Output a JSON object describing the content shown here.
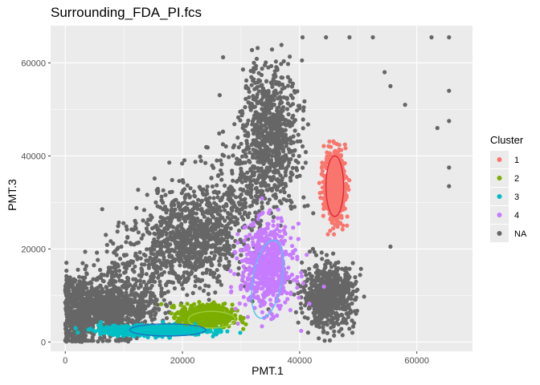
{
  "chart_data": {
    "type": "scatter",
    "title": "Surrounding_FDA_PI.fcs",
    "xlabel": "PMT.1",
    "ylabel": "PMT.3",
    "xlim": [
      -2500,
      69500
    ],
    "ylim": [
      -2000,
      68000
    ],
    "x_ticks": [
      0,
      20000,
      40000,
      60000
    ],
    "x_tick_labels": [
      "0",
      "20000",
      "40000",
      "60000"
    ],
    "y_ticks": [
      0,
      20000,
      40000,
      60000
    ],
    "y_tick_labels": [
      "0",
      "20000",
      "40000",
      "60000"
    ],
    "grid": true,
    "legend": {
      "title": "Cluster",
      "placement": "right",
      "entries": [
        {
          "label": "1",
          "color": "#f8766d"
        },
        {
          "label": "2",
          "color": "#7cae00"
        },
        {
          "label": "3",
          "color": "#00bfc4"
        },
        {
          "label": "4",
          "color": "#c77cff"
        },
        {
          "label": "NA",
          "color": "#666666"
        }
      ]
    },
    "series": [
      {
        "name": "NA",
        "color": "#666666",
        "description_regions": [
          {
            "cx": 35000,
            "cy": 45000,
            "rx": 4500,
            "ry": 14000
          },
          {
            "cx": 22000,
            "cy": 22000,
            "rx": 9000,
            "ry": 9000
          },
          {
            "cx": 8000,
            "cy": 7000,
            "rx": 7000,
            "ry": 5000
          },
          {
            "cx": 45000,
            "cy": 10000,
            "rx": 4000,
            "ry": 6000
          }
        ],
        "outliers": [
          [
            65500,
            65500
          ],
          [
            65500,
            54000
          ],
          [
            65500,
            47500
          ],
          [
            65500,
            37500
          ],
          [
            65500,
            33500
          ],
          [
            63500,
            46000
          ],
          [
            58000,
            51000
          ],
          [
            55500,
            55000
          ],
          [
            55500,
            20500
          ],
          [
            52500,
            65500
          ],
          [
            48500,
            65500
          ],
          [
            44500,
            65500
          ],
          [
            40500,
            65500
          ],
          [
            62500,
            65500
          ],
          [
            54500,
            58000
          ]
        ]
      },
      {
        "name": "1",
        "color": "#f8766d",
        "center": [
          46000,
          33500
        ],
        "spread": [
          1800,
          7500
        ],
        "ellipse": {
          "cx": 46000,
          "cy": 33500,
          "rx": 1500,
          "ry": 6500
        }
      },
      {
        "name": "2",
        "color": "#7cae00",
        "center": [
          24000,
          5500
        ],
        "spread": [
          4500,
          2500
        ],
        "ellipse": {
          "cx": 25000,
          "cy": 4800,
          "rx": 4000,
          "ry": 1800
        }
      },
      {
        "name": "3",
        "color": "#00bfc4",
        "center": [
          15000,
          2500
        ],
        "spread": [
          9000,
          1000
        ],
        "ellipse": {
          "cx": 17500,
          "cy": 2600,
          "rx": 6500,
          "ry": 1300
        }
      },
      {
        "name": "4",
        "color": "#c77cff",
        "center": [
          34500,
          16000
        ],
        "spread": [
          4500,
          9000
        ],
        "ellipse": {
          "cx": 34500,
          "cy": 13500,
          "rx": 2500,
          "ry": 8500
        }
      }
    ]
  }
}
